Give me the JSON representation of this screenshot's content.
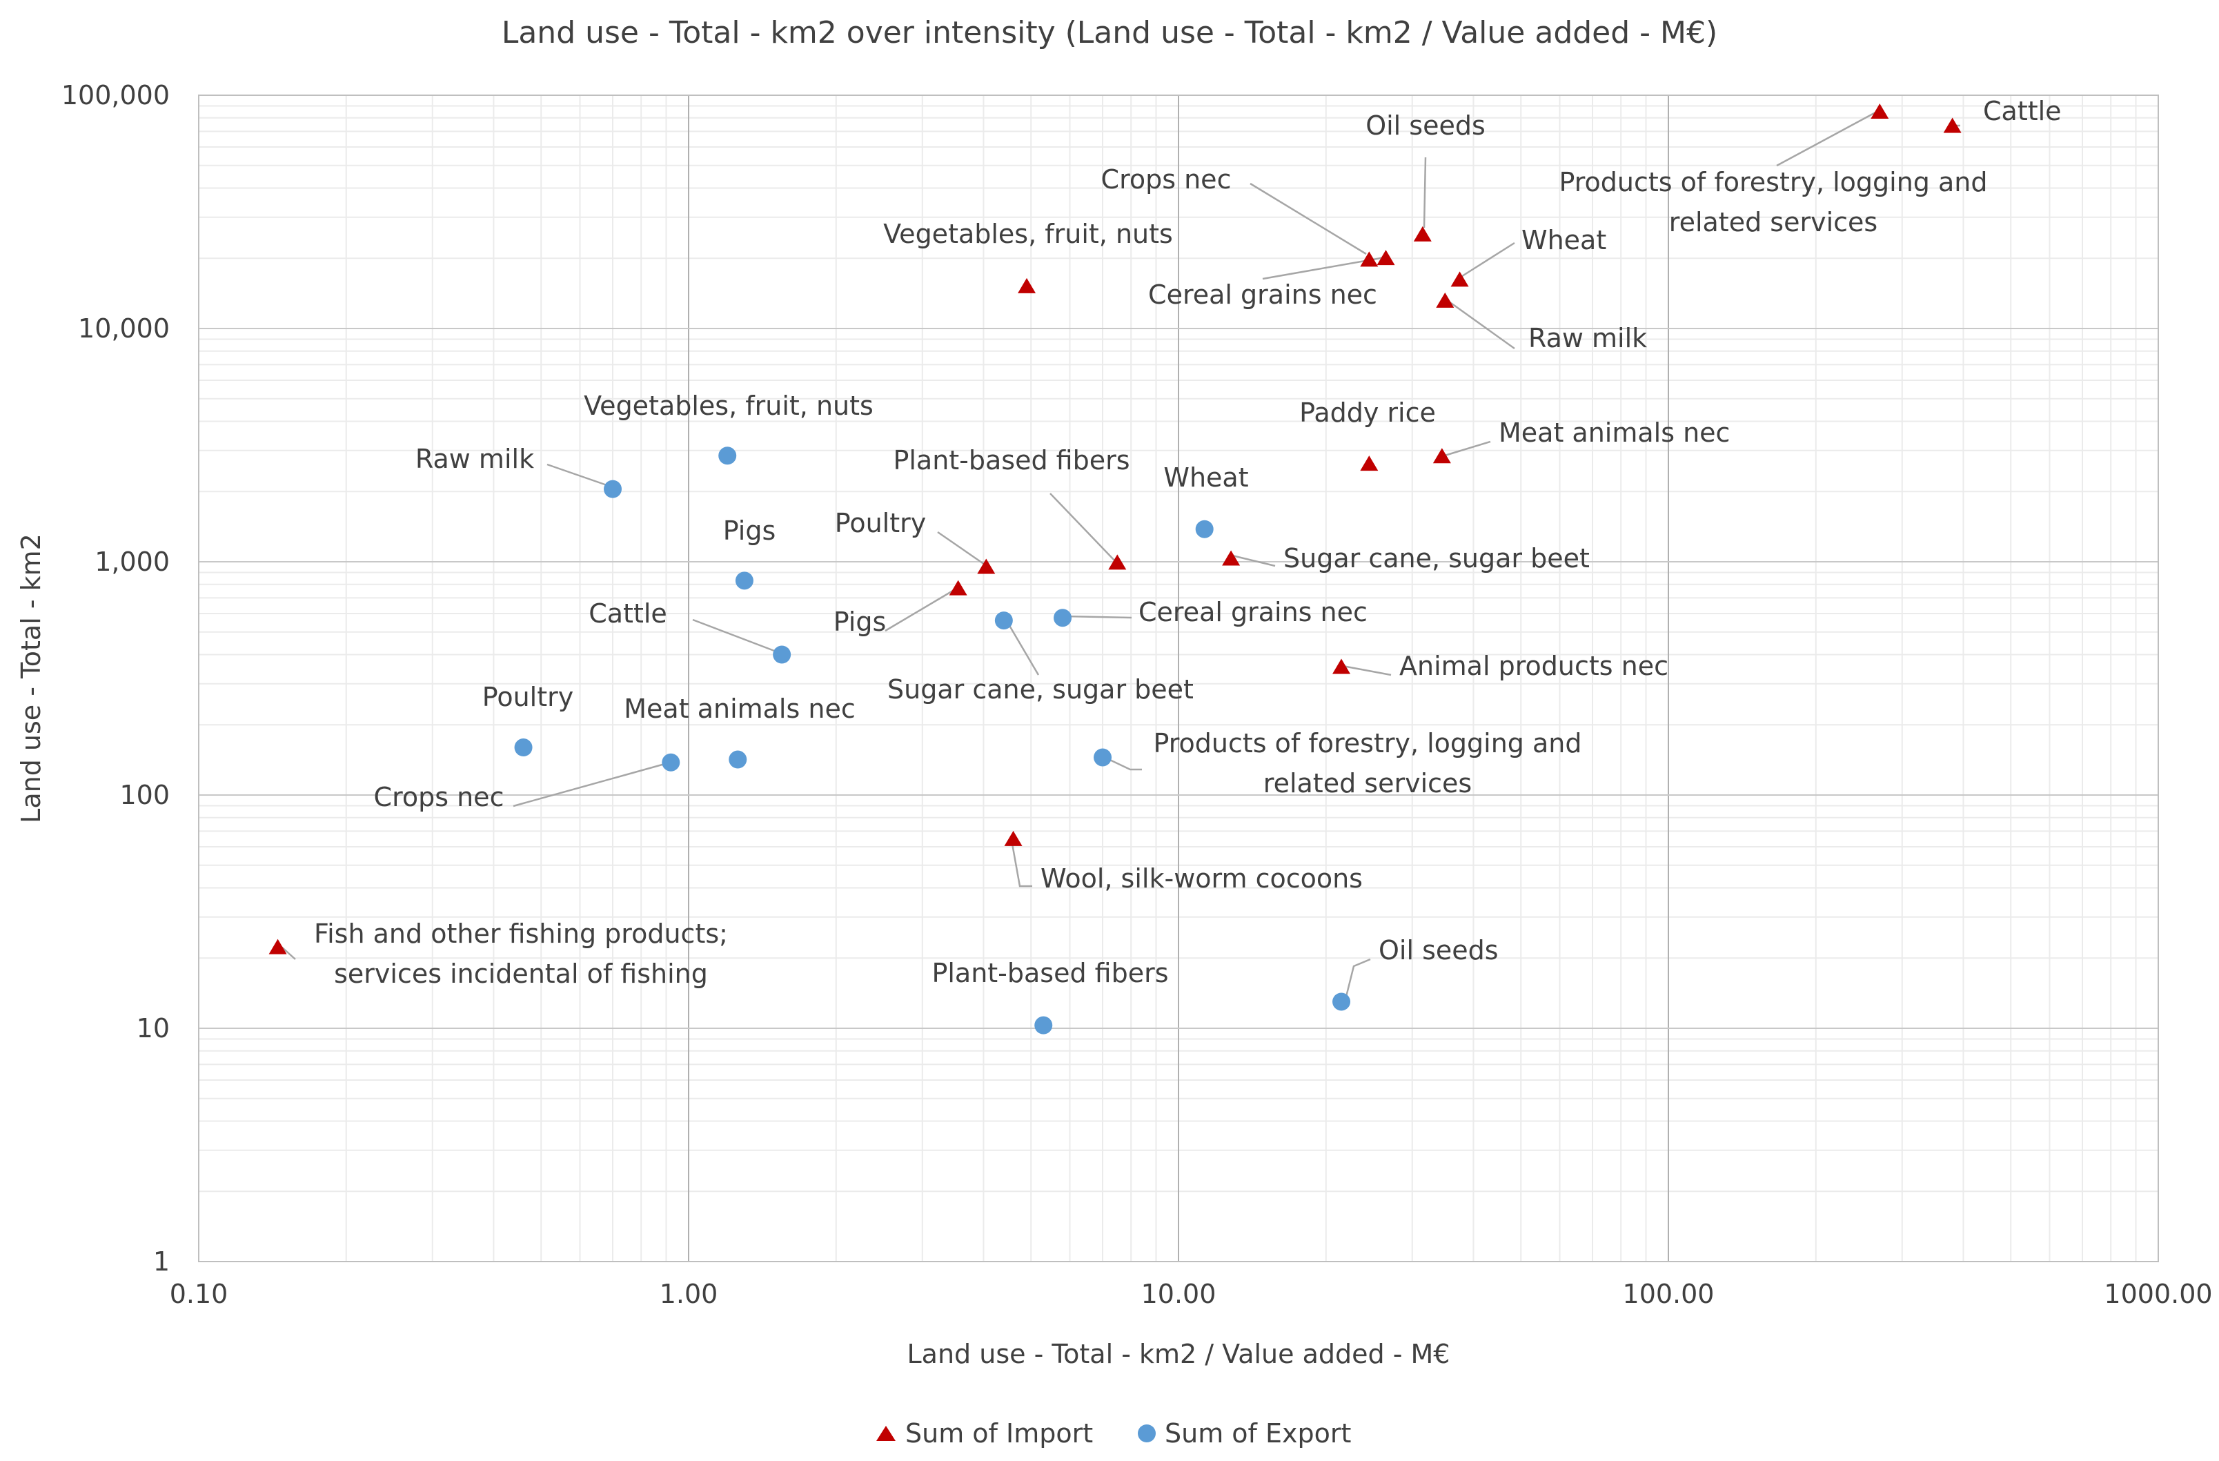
{
  "chart_data": {
    "type": "scatter",
    "title": "Land use - Total - km2 over intensity (Land use - Total - km2 / Value added - M€)",
    "xlabel": "Land use - Total - km2 / Value added - M€",
    "ylabel": "Land use - Total - km2",
    "xscale": "log",
    "yscale": "log",
    "xlim": [
      0.1,
      1000
    ],
    "ylim": [
      1,
      100000
    ],
    "x_ticks": [
      "0.10",
      "1.00",
      "10.00",
      "100.00",
      "1000.00"
    ],
    "y_ticks": [
      "1",
      "10",
      "100",
      "1,000",
      "10,000",
      "100,000"
    ],
    "grid": true,
    "legend_position": "bottom",
    "series": [
      {
        "name": "Sum of Import",
        "marker": "triangle",
        "color": "#C00000",
        "points": [
          {
            "label": "Cattle",
            "x": 380,
            "y": 73000
          },
          {
            "label": "Products of forestry, logging and related services",
            "x": 270,
            "y": 84000
          },
          {
            "label": "Oil seeds",
            "x": 31.5,
            "y": 25000
          },
          {
            "label": "Crops nec",
            "x": 24.5,
            "y": 19500
          },
          {
            "label": "Cereal grains nec",
            "x": 26.5,
            "y": 19800
          },
          {
            "label": "Wheat",
            "x": 37.5,
            "y": 16000
          },
          {
            "label": "Raw milk",
            "x": 35,
            "y": 13000
          },
          {
            "label": "Vegetables, fruit, nuts",
            "x": 4.9,
            "y": 15000
          },
          {
            "label": "Paddy rice",
            "x": 24.5,
            "y": 2600
          },
          {
            "label": "Meat animals nec",
            "x": 34.5,
            "y": 2800
          },
          {
            "label": "Sugar cane, sugar beet",
            "x": 12.8,
            "y": 1020
          },
          {
            "label": "Plant-based fibers",
            "x": 7.5,
            "y": 980
          },
          {
            "label": "Poultry",
            "x": 4.05,
            "y": 940
          },
          {
            "label": "Pigs",
            "x": 3.55,
            "y": 760
          },
          {
            "label": "Animal products nec",
            "x": 21.5,
            "y": 350
          },
          {
            "label": "Wool, silk-worm cocoons",
            "x": 4.6,
            "y": 64
          },
          {
            "label": "Fish and other fishing products; services incidental of fishing",
            "x": 0.145,
            "y": 22
          }
        ]
      },
      {
        "name": "Sum of Export",
        "marker": "circle",
        "color": "#5B9BD5",
        "points": [
          {
            "label": "Vegetables, fruit, nuts",
            "x": 1.2,
            "y": 2850
          },
          {
            "label": "Raw milk",
            "x": 0.7,
            "y": 2050
          },
          {
            "label": "Wheat",
            "x": 11.3,
            "y": 1380
          },
          {
            "label": "Pigs",
            "x": 1.3,
            "y": 830
          },
          {
            "label": "Cereal grains nec",
            "x": 5.8,
            "y": 575
          },
          {
            "label": "Sugar cane, sugar beet",
            "x": 4.4,
            "y": 560
          },
          {
            "label": "Cattle",
            "x": 1.55,
            "y": 400
          },
          {
            "label": "Poultry",
            "x": 0.46,
            "y": 160
          },
          {
            "label": "Meat animals nec",
            "x": 1.26,
            "y": 142
          },
          {
            "label": "Crops nec",
            "x": 0.92,
            "y": 138
          },
          {
            "label": "Products of forestry, logging and related services",
            "x": 7,
            "y": 145
          },
          {
            "label": "Oil seeds",
            "x": 21.5,
            "y": 13
          },
          {
            "label": "Plant-based fibers",
            "x": 5.3,
            "y": 10.3
          }
        ]
      }
    ]
  }
}
